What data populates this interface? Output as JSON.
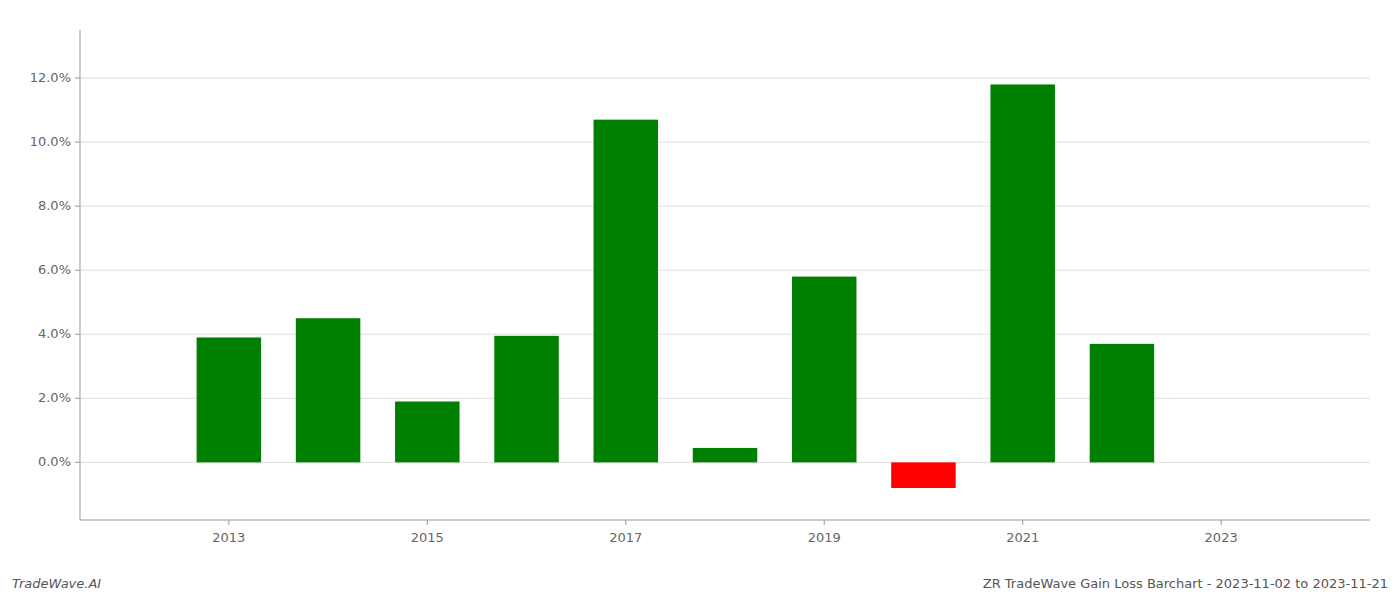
{
  "chart_data": {
    "type": "bar",
    "title": "ZR TradeWave Gain Loss Barchart - 2023-11-02 to 2023-11-21",
    "annotations": [
      "TradeWave.AI"
    ],
    "x": [
      2013,
      2014,
      2015,
      2016,
      2017,
      2018,
      2019,
      2020,
      2021,
      2022
    ],
    "values": [
      0.039,
      0.045,
      0.019,
      0.0395,
      0.107,
      0.0045,
      0.058,
      -0.008,
      0.118,
      0.037
    ],
    "colors": [
      "#008000",
      "#008000",
      "#008000",
      "#008000",
      "#008000",
      "#008000",
      "#008000",
      "#ff0000",
      "#008000",
      "#008000"
    ],
    "xlim": [
      2011.5,
      2024.5
    ],
    "xticks": [
      2013,
      2015,
      2017,
      2019,
      2021,
      2023
    ],
    "ylim": [
      -0.018,
      0.135
    ],
    "yticks": [
      {
        "value": 0.0,
        "label": "0.0%"
      },
      {
        "value": 0.02,
        "label": "2.0%"
      },
      {
        "value": 0.04,
        "label": "4.0%"
      },
      {
        "value": 0.06,
        "label": "6.0%"
      },
      {
        "value": 0.08,
        "label": "8.0%"
      },
      {
        "value": 0.1,
        "label": "10.0%"
      },
      {
        "value": 0.12,
        "label": "12.0%"
      }
    ],
    "grid": true
  }
}
